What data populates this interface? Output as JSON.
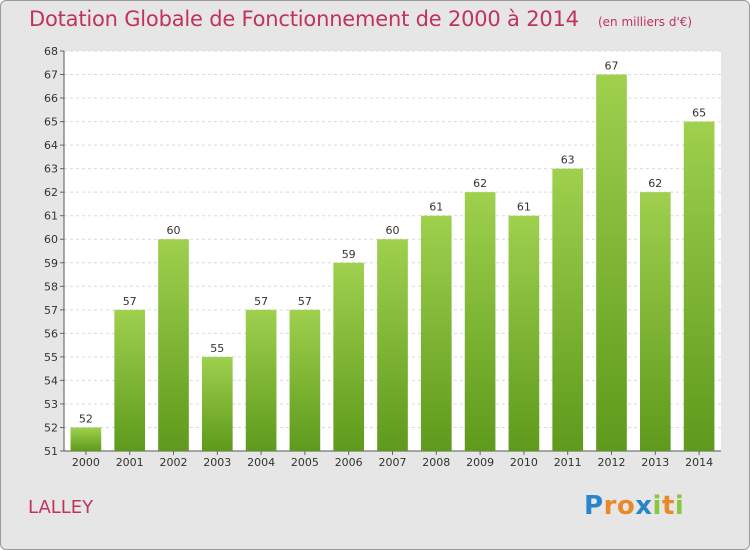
{
  "chart_data": {
    "type": "bar",
    "title": "Dotation Globale de Fonctionnement de 2000 à 2014",
    "subtitle": "(en milliers d'€)",
    "categories": [
      "2000",
      "2001",
      "2002",
      "2003",
      "2004",
      "2005",
      "2006",
      "2007",
      "2008",
      "2009",
      "2010",
      "2011",
      "2012",
      "2013",
      "2014"
    ],
    "values": [
      52,
      57,
      60,
      55,
      57,
      57,
      59,
      60,
      61,
      62,
      61,
      63,
      67,
      62,
      65
    ],
    "data_labels": [
      "52",
      "57",
      "60",
      "55",
      "57",
      "57",
      "59",
      "60",
      "61",
      "62",
      "61",
      "63",
      "67",
      "62",
      "65"
    ],
    "ylim": [
      51,
      68
    ],
    "yticks": [
      51,
      52,
      53,
      54,
      55,
      56,
      57,
      58,
      59,
      60,
      61,
      62,
      63,
      64,
      65,
      66,
      67,
      68
    ],
    "xlabel": "",
    "ylabel": "",
    "grid": true,
    "bar_color": "#7cba2c"
  },
  "footer": {
    "city": "LALLEY",
    "logo_text": "Proxiti",
    "logo_letters": [
      "P",
      "r",
      "o",
      "x",
      "i",
      "t",
      "i"
    ],
    "logo_colors": [
      "#2a86c9",
      "#e9892a",
      "#e9892a",
      "#2a86c9",
      "#8cc63f",
      "#e9892a",
      "#8cc63f"
    ]
  }
}
